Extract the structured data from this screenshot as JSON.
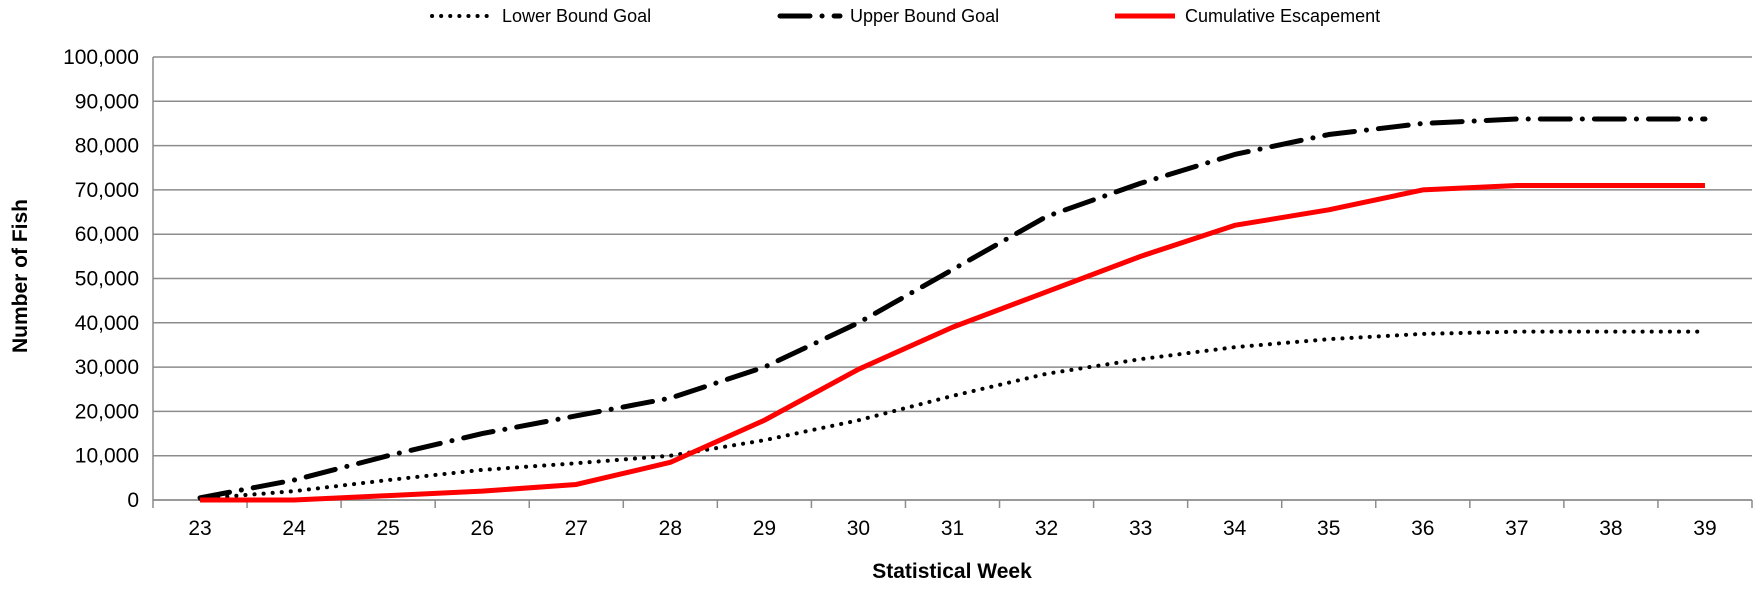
{
  "chart_data": {
    "type": "line",
    "xlabel": "Statistical Week",
    "ylabel": "Number of Fish",
    "xlim": [
      23,
      39
    ],
    "ylim": [
      0,
      100000
    ],
    "grid": true,
    "legend_position": "top",
    "x": [
      23,
      24,
      25,
      26,
      27,
      28,
      29,
      30,
      31,
      32,
      33,
      34,
      35,
      36,
      37,
      38,
      39
    ],
    "x_tick_labels": [
      "23",
      "24",
      "25",
      "26",
      "27",
      "28",
      "29",
      "30",
      "31",
      "32",
      "33",
      "34",
      "35",
      "36",
      "37",
      "38",
      "39"
    ],
    "y_tick_labels": [
      "0",
      "10,000",
      "20,000",
      "30,000",
      "40,000",
      "50,000",
      "60,000",
      "70,000",
      "80,000",
      "90,000",
      "100,000"
    ],
    "y_ticks": [
      0,
      10000,
      20000,
      30000,
      40000,
      50000,
      60000,
      70000,
      80000,
      90000,
      100000
    ],
    "series": [
      {
        "name": "Lower Bound Goal",
        "style": "dotted",
        "color": "#000000",
        "values": [
          300,
          2000,
          4500,
          6800,
          8300,
          10000,
          13500,
          18000,
          23500,
          28500,
          31800,
          34500,
          36300,
          37500,
          38000,
          38000,
          38000
        ]
      },
      {
        "name": "Upper Bound Goal",
        "style": "dash-dot",
        "color": "#000000",
        "values": [
          500,
          4500,
          10000,
          15000,
          19000,
          23000,
          30000,
          40000,
          52000,
          64000,
          71500,
          78000,
          82500,
          85000,
          86000,
          86000,
          86000
        ]
      },
      {
        "name": "Cumulative Escapement",
        "style": "solid",
        "color": "#ff0000",
        "values": [
          0,
          0,
          1000,
          2000,
          3500,
          8500,
          18000,
          29500,
          39000,
          47000,
          55000,
          62000,
          65500,
          70000,
          71000,
          71000,
          71000
        ]
      }
    ]
  }
}
